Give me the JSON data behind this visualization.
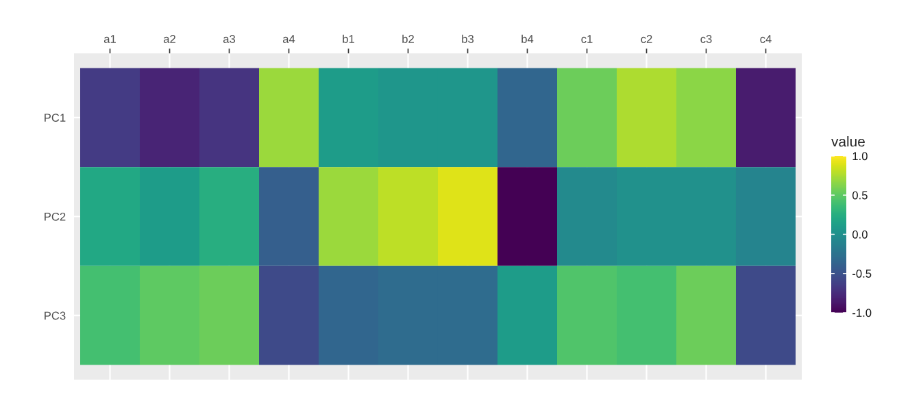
{
  "chart_data": {
    "type": "heatmap",
    "categories": [
      "a1",
      "a2",
      "a3",
      "a4",
      "b1",
      "b2",
      "b3",
      "b4",
      "c1",
      "c2",
      "c3",
      "c4"
    ],
    "y_categories": [
      "PC1",
      "PC2",
      "PC3"
    ],
    "cells": [
      [
        -0.65,
        -0.8,
        -0.7,
        0.7,
        0.1,
        0.05,
        0.05,
        -0.35,
        0.55,
        0.75,
        0.65,
        -0.85
      ],
      [
        0.2,
        0.1,
        0.25,
        -0.4,
        0.7,
        0.8,
        0.9,
        -1.0,
        -0.05,
        0.0,
        0.0,
        -0.1
      ],
      [
        0.4,
        0.5,
        0.55,
        -0.55,
        -0.35,
        -0.3,
        -0.3,
        0.1,
        0.45,
        0.4,
        0.55,
        -0.55
      ]
    ],
    "clabel": "value",
    "clim": [
      -1.0,
      1.0
    ],
    "cticks": [
      {
        "value": 1.0,
        "label": "1.0"
      },
      0.5,
      {
        "value": 0.0,
        "label": "0.0"
      },
      -0.5,
      {
        "value": -1.0,
        "label": "-1.0"
      }
    ],
    "grid": true
  }
}
